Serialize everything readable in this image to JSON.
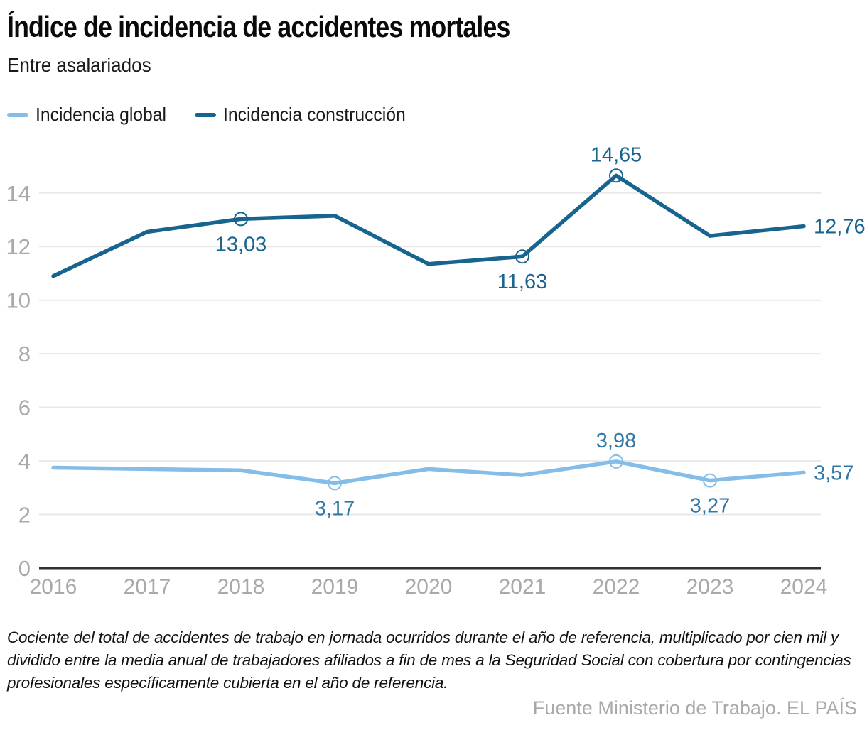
{
  "header": {
    "title": "Índice de incidencia de accidentes mortales",
    "subtitle": "Entre asalariados"
  },
  "legend": [
    {
      "label": "Incidencia global",
      "color": "#85bde9"
    },
    {
      "label": "Incidencia construcción",
      "color": "#17648f"
    }
  ],
  "chart_data": {
    "type": "line",
    "title": "Índice de incidencia de accidentes mortales",
    "subtitle": "Entre asalariados",
    "x": [
      2016,
      2017,
      2018,
      2019,
      2020,
      2021,
      2022,
      2023,
      2024
    ],
    "series": [
      {
        "id": "global",
        "name": "Incidencia global",
        "color": "#85bde9",
        "label_color": "#3178a8",
        "values": [
          3.75,
          3.7,
          3.65,
          3.17,
          3.7,
          3.47,
          3.98,
          3.27,
          3.57
        ],
        "labels": [
          {
            "x": 2019,
            "text": "3,17",
            "pos": "below",
            "marker": true
          },
          {
            "x": 2022,
            "text": "3,98",
            "pos": "above",
            "marker": true
          },
          {
            "x": 2023,
            "text": "3,27",
            "pos": "below",
            "marker": true
          },
          {
            "x": 2024,
            "text": "3,57",
            "pos": "right",
            "marker": false
          }
        ]
      },
      {
        "id": "construccion",
        "name": "Incidencia construcción",
        "color": "#17648f",
        "label_color": "#1a648f",
        "values": [
          10.9,
          12.55,
          13.03,
          13.15,
          11.35,
          11.63,
          14.65,
          12.4,
          12.76
        ],
        "labels": [
          {
            "x": 2018,
            "text": "13,03",
            "pos": "below",
            "marker": true
          },
          {
            "x": 2021,
            "text": "11,63",
            "pos": "below",
            "marker": true
          },
          {
            "x": 2022,
            "text": "14,65",
            "pos": "above",
            "marker": true
          },
          {
            "x": 2024,
            "text": "12,76",
            "pos": "right",
            "marker": false
          }
        ]
      }
    ],
    "ylim": [
      0,
      14
    ],
    "ytick_step": 2,
    "ytick_labels": [
      "0",
      "2",
      "4",
      "6",
      "8",
      "10",
      "12",
      "14"
    ],
    "grid": true,
    "legend_position": "top-left"
  },
  "colors": {
    "grid": "#e8e8e8",
    "axis_line": "#2f2f2f",
    "axis_text": "#a9a9a9"
  },
  "footnote": "Cociente del total de accidentes de trabajo en jornada ocurridos durante el año de referencia, multiplicado por cien mil y dividido entre la media anual de trabajadores afiliados a fin de mes a la Seguridad Social con cobertura por contingencias profesionales específicamente cubierta en el año de referencia.",
  "source": "Fuente Ministerio de Trabajo. EL PAÍS"
}
